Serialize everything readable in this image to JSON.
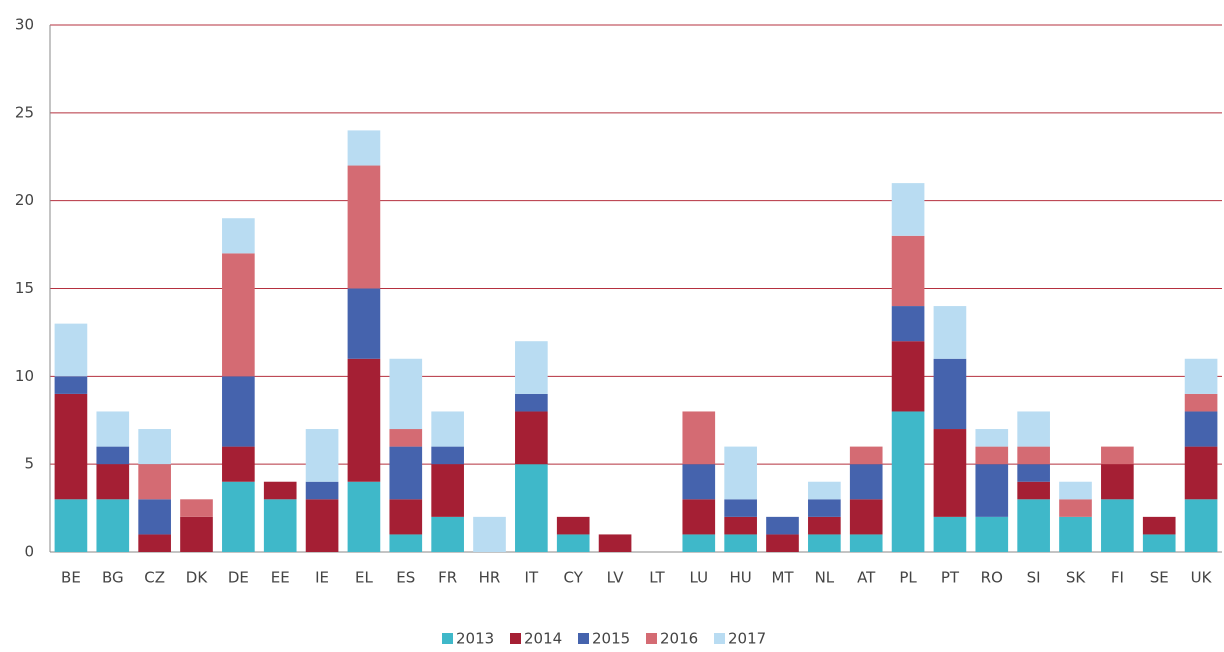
{
  "chart_data": {
    "type": "stacked_bar",
    "categories": [
      "BE",
      "BG",
      "CZ",
      "DK",
      "DE",
      "EE",
      "IE",
      "EL",
      "ES",
      "FR",
      "HR",
      "IT",
      "CY",
      "LV",
      "LT",
      "LU",
      "HU",
      "MT",
      "NL",
      "AT",
      "PL",
      "PT",
      "RO",
      "SI",
      "SK",
      "FI",
      "SE",
      "UK"
    ],
    "series": [
      {
        "name": "2013",
        "color": "#3fb8c9",
        "values": [
          3,
          3,
          0,
          0,
          4,
          3,
          0,
          4,
          1,
          2,
          0,
          5,
          1,
          0,
          0,
          1,
          1,
          0,
          1,
          1,
          8,
          2,
          2,
          3,
          2,
          3,
          1,
          3
        ]
      },
      {
        "name": "2014",
        "color": "#a51f34",
        "values": [
          6,
          2,
          1,
          2,
          2,
          1,
          3,
          7,
          2,
          3,
          0,
          3,
          1,
          1,
          0,
          2,
          1,
          1,
          1,
          2,
          4,
          5,
          0,
          1,
          0,
          2,
          1,
          3
        ]
      },
      {
        "name": "2015",
        "color": "#4563ad",
        "values": [
          1,
          1,
          2,
          0,
          4,
          0,
          1,
          4,
          3,
          1,
          0,
          1,
          0,
          0,
          0,
          2,
          1,
          1,
          1,
          2,
          2,
          4,
          3,
          1,
          0,
          0,
          0,
          2
        ]
      },
      {
        "name": "2016",
        "color": "#d46b73",
        "values": [
          0,
          0,
          2,
          1,
          7,
          0,
          0,
          7,
          1,
          0,
          0,
          0,
          0,
          0,
          0,
          3,
          0,
          0,
          0,
          1,
          4,
          0,
          1,
          1,
          1,
          1,
          0,
          1
        ]
      },
      {
        "name": "2017",
        "color": "#b9dcf2",
        "values": [
          3,
          2,
          2,
          0,
          2,
          0,
          3,
          2,
          4,
          2,
          2,
          3,
          0,
          0,
          0,
          0,
          3,
          0,
          1,
          0,
          3,
          3,
          1,
          2,
          1,
          0,
          0,
          2
        ]
      }
    ],
    "ylim": [
      0,
      30
    ],
    "yticks": [
      0,
      5,
      10,
      15,
      20,
      25,
      30
    ],
    "grid": true,
    "legend": "bottom"
  }
}
